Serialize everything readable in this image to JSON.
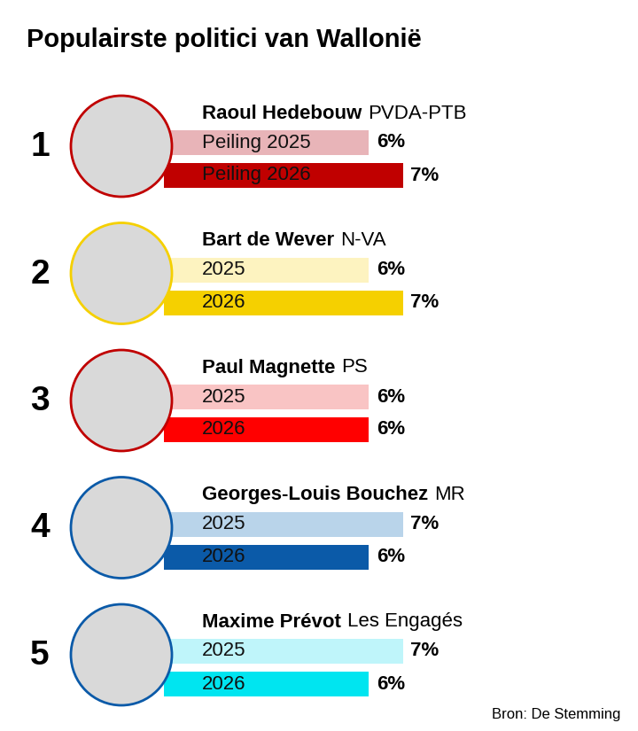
{
  "chart_data": {
    "type": "bar",
    "orientation": "horizontal",
    "title": "Populairste politici van Wallonië",
    "source": "Bron: De Stemming",
    "categories": [
      "Raoul Hedebouw",
      "Bart de Wever",
      "Paul Magnette",
      "Georges-Louis Bouchez",
      "Maxime Prévot"
    ],
    "parties": [
      "PVDA-PTB",
      "N-VA",
      "PS",
      "MR",
      "Les Engagés"
    ],
    "ranks": [
      1,
      2,
      3,
      4,
      5
    ],
    "series": [
      {
        "labels": [
          "Peiling 2025",
          "2025",
          "2025",
          "2025",
          "2025"
        ],
        "colors": [
          "#e8b4b8",
          "#fdf3c0",
          "#f9c4c4",
          "#b9d4ea",
          "#bff5fa"
        ],
        "values": [
          6,
          6,
          6,
          7,
          7
        ],
        "value_labels": [
          "6%",
          "6%",
          "6%",
          "7%",
          "7%"
        ]
      },
      {
        "labels": [
          "Peiling 2026",
          "2026",
          "2026",
          "2026",
          "2026"
        ],
        "colors": [
          "#c00000",
          "#f5d000",
          "#ff0000",
          "#0b5aa8",
          "#00e5f0"
        ],
        "values": [
          7,
          7,
          6,
          6,
          6
        ],
        "value_labels": [
          "7%",
          "7%",
          "6%",
          "6%",
          "6%"
        ]
      }
    ],
    "xlim": [
      0,
      7
    ],
    "data_labels": true,
    "tick_labels": false
  }
}
